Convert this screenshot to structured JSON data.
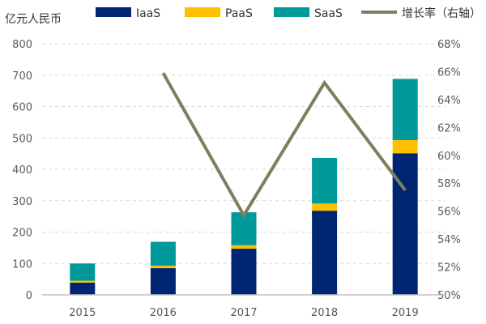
{
  "chart_data": {
    "type": "bar",
    "stacked": true,
    "categories": [
      "2015",
      "2016",
      "2017",
      "2018",
      "2019"
    ],
    "y_unit_label": "亿元人民币",
    "ylim": [
      0,
      800
    ],
    "yticks": [
      0,
      100,
      200,
      300,
      400,
      500,
      600,
      700,
      800
    ],
    "y2lim": [
      50,
      68
    ],
    "y2ticks": [
      "50%",
      "52%",
      "54%",
      "56%",
      "58%",
      "60%",
      "62%",
      "64%",
      "66%",
      "68%"
    ],
    "grid": true,
    "legend_position": "top",
    "series": [
      {
        "name": "IaaS",
        "color": "#002673",
        "values": [
          39,
          85,
          147,
          268,
          451
        ]
      },
      {
        "name": "PaaS",
        "color": "#FFC000",
        "values": [
          6,
          8,
          11,
          23,
          42
        ]
      },
      {
        "name": "SaaS",
        "color": "#009999",
        "values": [
          55,
          76,
          105,
          145,
          195
        ]
      }
    ],
    "line_series": {
      "name": "增长率（右轴）",
      "color": "#7F7F5F",
      "axis": "right",
      "values": [
        null,
        65.9,
        55.7,
        65.2,
        57.5
      ]
    }
  }
}
